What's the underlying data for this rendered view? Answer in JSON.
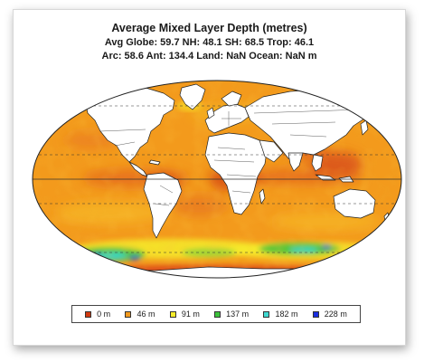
{
  "title": "Average Mixed Layer Depth (metres)",
  "stats": {
    "line1": "Avg Globe: 59.7  NH: 48.1  SH: 68.5  Trop: 46.1",
    "line2": "Arc: 58.6  Ant: 134.4  Land: NaN Ocean: NaN m"
  },
  "map": {
    "projection": "mollweide",
    "ocean_color": "#f39a1c",
    "land_color": "#ffffff",
    "coastline_color": "#222222",
    "gridline_style": "dashed"
  },
  "legend": {
    "items": [
      {
        "label": "0 m",
        "color": "#d23a10"
      },
      {
        "label": "46 m",
        "color": "#f29a1e"
      },
      {
        "label": "91 m",
        "color": "#f6ec2a"
      },
      {
        "label": "137 m",
        "color": "#3cc23c"
      },
      {
        "label": "182 m",
        "color": "#3fd8d0"
      },
      {
        "label": "228 m",
        "color": "#1a2ee0"
      }
    ]
  }
}
